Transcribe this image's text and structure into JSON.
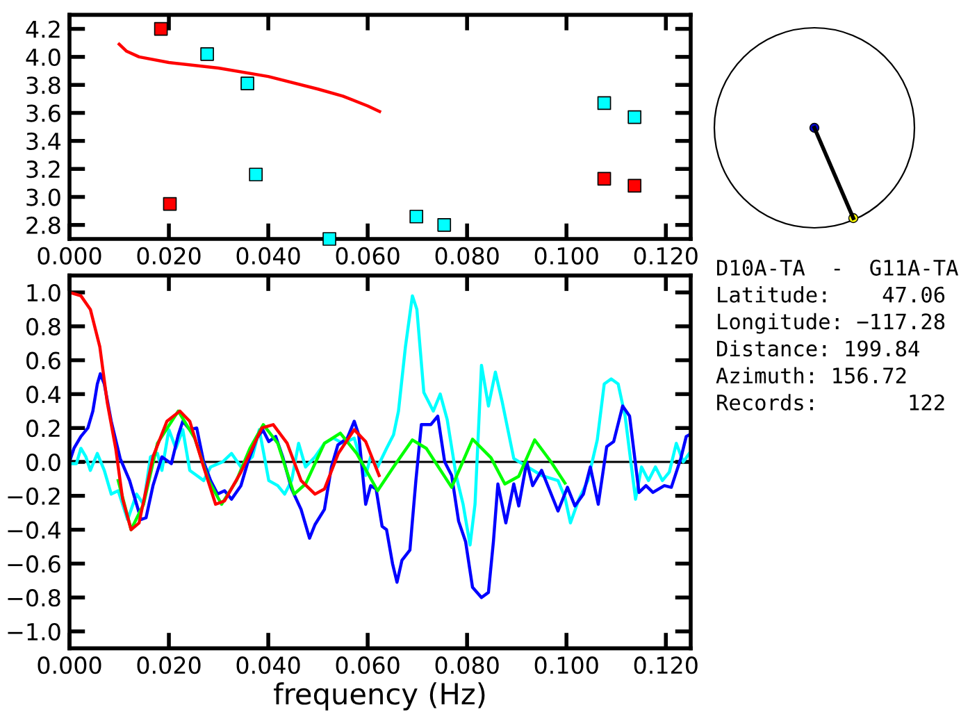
{
  "chart_data": [
    {
      "type": "scatter",
      "marker": "square",
      "grid": false,
      "legend": false,
      "xlim": [
        0,
        0.125
      ],
      "ylim": [
        2.7,
        4.3
      ],
      "xticks": [
        {
          "value": 0,
          "label": "0.000"
        },
        {
          "value": 0.02,
          "label": "0.020"
        },
        {
          "value": 0.04,
          "label": "0.040"
        },
        {
          "value": 0.06,
          "label": "0.060"
        },
        {
          "value": 0.08,
          "label": "0.080"
        },
        {
          "value": 0.1,
          "label": "0.100"
        },
        {
          "value": 0.12,
          "label": "0.120"
        }
      ],
      "yticks": [
        {
          "value": 2.8,
          "label": "2.8"
        },
        {
          "value": 3.0,
          "label": "3.0"
        },
        {
          "value": 3.2,
          "label": "3.2"
        },
        {
          "value": 3.4,
          "label": "3.4"
        },
        {
          "value": 3.6,
          "label": "3.6"
        },
        {
          "value": 3.8,
          "label": "3.8"
        },
        {
          "value": 4.0,
          "label": "4.0"
        },
        {
          "value": 4.2,
          "label": "4.2"
        }
      ],
      "series": [
        {
          "color": "#ff0000",
          "x": [
            0.0184,
            0.0202,
            0.1076,
            0.1137
          ],
          "values": [
            4.2,
            2.95,
            3.13,
            3.08
          ]
        },
        {
          "color": "#00ffff",
          "x": [
            0.0277,
            0.0358,
            0.0375,
            0.0523,
            0.0698,
            0.0754,
            0.1076,
            0.1137
          ],
          "values": [
            4.02,
            3.81,
            3.16,
            2.7,
            2.86,
            2.8,
            3.67,
            3.57
          ]
        },
        {
          "type": "line",
          "marker": "none",
          "color": "#ff0000",
          "x": [
            0.01,
            0.0115,
            0.014,
            0.02,
            0.03,
            0.04,
            0.05,
            0.055,
            0.06,
            0.0624
          ],
          "values": [
            4.09,
            4.04,
            4.0,
            3.96,
            3.92,
            3.86,
            3.77,
            3.72,
            3.65,
            3.61
          ]
        }
      ]
    },
    {
      "type": "line",
      "marker": "none",
      "grid": false,
      "legend": false,
      "xlabel": "frequency (Hz)",
      "xlim": [
        0,
        0.125
      ],
      "ylim": [
        -1.1,
        1.1
      ],
      "xticks": [
        {
          "value": 0,
          "label": "0.000"
        },
        {
          "value": 0.02,
          "label": "0.020"
        },
        {
          "value": 0.04,
          "label": "0.040"
        },
        {
          "value": 0.06,
          "label": "0.060"
        },
        {
          "value": 0.08,
          "label": "0.080"
        },
        {
          "value": 0.1,
          "label": "0.100"
        },
        {
          "value": 0.12,
          "label": "0.120"
        }
      ],
      "yticks": [
        {
          "value": -1.0,
          "label": "−1.0"
        },
        {
          "value": -0.8,
          "label": "−0.8"
        },
        {
          "value": -0.6,
          "label": "−0.6"
        },
        {
          "value": -0.4,
          "label": "−0.4"
        },
        {
          "value": -0.2,
          "label": "−0.2"
        },
        {
          "value": 0.0,
          "label": "0.0"
        },
        {
          "value": 0.2,
          "label": "0.2"
        },
        {
          "value": 0.4,
          "label": "0.4"
        },
        {
          "value": 0.6,
          "label": "0.6"
        },
        {
          "value": 0.8,
          "label": "0.8"
        },
        {
          "value": 1.0,
          "label": "1.0"
        }
      ],
      "ref_lines": [
        {
          "axis": "y",
          "value": 0,
          "color": "#000000"
        }
      ],
      "series": [
        {
          "color": "#00ffff",
          "x": [
            0,
            0.0014,
            0.0023,
            0.0033,
            0.0042,
            0.0056,
            0.007,
            0.0084,
            0.0098,
            0.0117,
            0.0135,
            0.0149,
            0.0163,
            0.0177,
            0.0186,
            0.02,
            0.0214,
            0.0228,
            0.0242,
            0.0256,
            0.027,
            0.0284,
            0.0308,
            0.0326,
            0.0345,
            0.0368,
            0.0382,
            0.0401,
            0.0419,
            0.0433,
            0.0447,
            0.0461,
            0.0475,
            0.0494,
            0.0513,
            0.0531,
            0.055,
            0.0573,
            0.0587,
            0.0596,
            0.0606,
            0.062,
            0.0638,
            0.0652,
            0.0662,
            0.0676,
            0.069,
            0.0699,
            0.0713,
            0.0732,
            0.0746,
            0.076,
            0.0778,
            0.0792,
            0.0806,
            0.0816,
            0.0829,
            0.0843,
            0.0857,
            0.0871,
            0.0894,
            0.0922,
            0.095,
            0.0983,
            0.0997,
            0.1008,
            0.1025,
            0.1043,
            0.1062,
            0.1076,
            0.109,
            0.1104,
            0.1118,
            0.1139,
            0.1151,
            0.1165,
            0.1179,
            0.1193,
            0.1207,
            0.1221,
            0.1235,
            0.1247
          ],
          "values": [
            -0.01,
            -0.01,
            0.08,
            0.03,
            -0.05,
            0.05,
            -0.05,
            -0.19,
            -0.17,
            -0.34,
            -0.19,
            -0.25,
            0.03,
            0.05,
            -0.05,
            0.19,
            0.08,
            0.19,
            -0.05,
            -0.08,
            -0.11,
            -0.03,
            0.0,
            0.05,
            -0.03,
            0.03,
            0.19,
            -0.11,
            -0.14,
            -0.19,
            -0.11,
            0.11,
            -0.03,
            0.03,
            0.11,
            0.14,
            0.11,
            0.14,
            0.0,
            -0.08,
            0.03,
            -0.03,
            0.08,
            0.16,
            0.3,
            0.68,
            0.98,
            0.9,
            0.41,
            0.3,
            0.4,
            0.25,
            -0.08,
            -0.25,
            -0.49,
            -0.25,
            0.57,
            0.33,
            0.53,
            0.35,
            0.02,
            -0.03,
            -0.08,
            -0.11,
            -0.21,
            -0.36,
            -0.22,
            -0.11,
            0.13,
            0.46,
            0.49,
            0.46,
            0.27,
            -0.22,
            -0.03,
            -0.11,
            -0.03,
            -0.11,
            -0.06,
            0.11,
            0.0,
            0.05
          ]
        },
        {
          "color": "#0000ff",
          "x": [
            0,
            0.0009,
            0.0023,
            0.0037,
            0.0047,
            0.0056,
            0.0062,
            0.007,
            0.0084,
            0.0102,
            0.0121,
            0.0135,
            0.0144,
            0.0154,
            0.0168,
            0.0186,
            0.0205,
            0.0219,
            0.0228,
            0.0242,
            0.0256,
            0.027,
            0.0284,
            0.0298,
            0.0312,
            0.0326,
            0.0345,
            0.0359,
            0.0377,
            0.0389,
            0.0401,
            0.0415,
            0.0429,
            0.0447,
            0.0466,
            0.0483,
            0.0494,
            0.0513,
            0.0527,
            0.054,
            0.0559,
            0.0573,
            0.0582,
            0.0596,
            0.0606,
            0.0617,
            0.0629,
            0.0638,
            0.065,
            0.0659,
            0.0669,
            0.0685,
            0.0697,
            0.0708,
            0.0727,
            0.0741,
            0.0755,
            0.0769,
            0.0783,
            0.0797,
            0.0811,
            0.0829,
            0.0843,
            0.0853,
            0.0862,
            0.0878,
            0.0894,
            0.0904,
            0.092,
            0.0932,
            0.095,
            0.0983,
            0.1002,
            0.1017,
            0.1034,
            0.1048,
            0.1064,
            0.1081,
            0.1095,
            0.1113,
            0.1127,
            0.1146,
            0.116,
            0.1174,
            0.1197,
            0.1211,
            0.123,
            0.1241,
            0.1247
          ],
          "values": [
            0.0,
            0.08,
            0.15,
            0.2,
            0.3,
            0.46,
            0.52,
            0.46,
            0.24,
            0.02,
            -0.11,
            -0.25,
            -0.34,
            -0.33,
            -0.14,
            0.03,
            -0.01,
            0.16,
            0.24,
            0.19,
            0.2,
            0.0,
            -0.11,
            -0.19,
            -0.17,
            -0.22,
            -0.14,
            0.0,
            0.14,
            0.19,
            0.12,
            0.15,
            0.03,
            -0.16,
            -0.28,
            -0.45,
            -0.37,
            -0.28,
            -0.03,
            0.1,
            0.14,
            0.24,
            0.16,
            -0.25,
            -0.14,
            -0.16,
            -0.38,
            -0.4,
            -0.6,
            -0.71,
            -0.58,
            -0.52,
            -0.11,
            0.22,
            0.22,
            0.27,
            0.0,
            -0.08,
            -0.35,
            -0.47,
            -0.74,
            -0.8,
            -0.77,
            -0.47,
            -0.13,
            -0.36,
            -0.13,
            -0.26,
            0.0,
            -0.14,
            -0.05,
            -0.29,
            -0.15,
            -0.26,
            -0.19,
            -0.03,
            -0.25,
            0.09,
            0.12,
            0.33,
            0.27,
            -0.18,
            -0.14,
            -0.18,
            -0.14,
            -0.15,
            0.02,
            0.15,
            0.16
          ]
        },
        {
          "color": "#00ff00",
          "x": [
            0.0098,
            0.0124,
            0.0149,
            0.0177,
            0.0219,
            0.0252,
            0.028,
            0.0306,
            0.0336,
            0.0363,
            0.039,
            0.0419,
            0.0452,
            0.0475,
            0.0513,
            0.0545,
            0.0578,
            0.062,
            0.0652,
            0.069,
            0.0718,
            0.0769,
            0.0811,
            0.0848,
            0.0876,
            0.0904,
            0.0936,
            0.0969,
            0.0997
          ],
          "values": [
            -0.11,
            -0.4,
            -0.25,
            0.11,
            0.3,
            0.14,
            -0.11,
            -0.25,
            -0.11,
            0.08,
            0.22,
            0.11,
            -0.19,
            -0.13,
            0.11,
            0.17,
            0.05,
            -0.17,
            -0.03,
            0.13,
            0.08,
            -0.15,
            0.134,
            0.025,
            -0.13,
            -0.085,
            0.13,
            0.0,
            -0.125
          ]
        },
        {
          "color": "#ff0000",
          "x": [
            0,
            0.0023,
            0.0042,
            0.0061,
            0.0076,
            0.0093,
            0.0107,
            0.0124,
            0.014,
            0.0168,
            0.0196,
            0.0222,
            0.0242,
            0.027,
            0.0294,
            0.0312,
            0.0345,
            0.0387,
            0.041,
            0.0438,
            0.0466,
            0.0494,
            0.0513,
            0.0541,
            0.0573,
            0.0596,
            0.0623
          ],
          "values": [
            1.0,
            0.98,
            0.9,
            0.68,
            0.35,
            0.08,
            -0.22,
            -0.4,
            -0.36,
            0.03,
            0.24,
            0.3,
            0.24,
            -0.03,
            -0.25,
            -0.23,
            -0.06,
            0.2,
            0.22,
            0.11,
            -0.11,
            -0.19,
            -0.16,
            0.05,
            0.19,
            0.12,
            -0.08
          ]
        }
      ]
    },
    {
      "type": "other",
      "annotations": [
        "D10A-TA  -  G11A-TA",
        "Latitude:    47.06",
        "Longitude: −117.28",
        "Distance: 199.84",
        "Azimuth: 156.72",
        "Records:       122"
      ]
    }
  ]
}
